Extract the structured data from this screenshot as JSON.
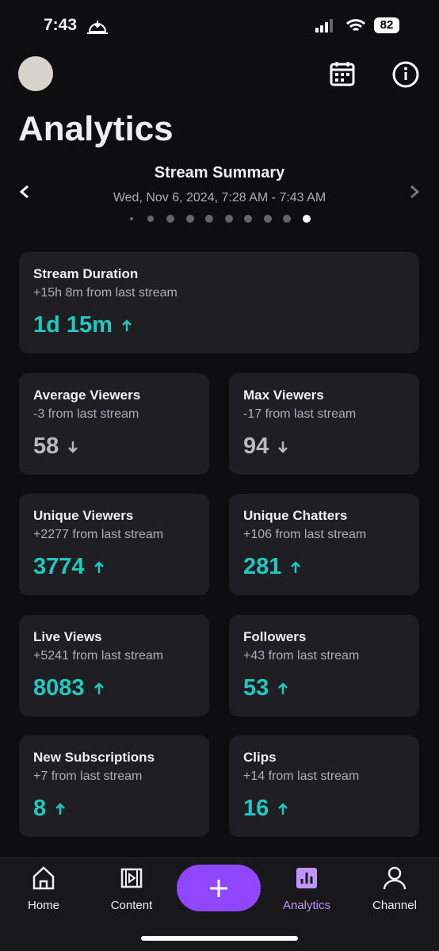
{
  "status_bar": {
    "time": "7:43",
    "battery": "82"
  },
  "header": {
    "title": "Analytics"
  },
  "summary": {
    "title": "Stream Summary",
    "date": "Wed, Nov 6, 2024, 7:28 AM - 7:43 AM"
  },
  "cards": [
    {
      "label": "Stream Duration",
      "change": "+15h 8m from last stream",
      "value": "1d 15m",
      "trend": "up"
    },
    {
      "label": "Average Viewers",
      "change": "-3 from last stream",
      "value": "58",
      "trend": "down"
    },
    {
      "label": "Max Viewers",
      "change": "-17 from last stream",
      "value": "94",
      "trend": "down"
    },
    {
      "label": "Unique Viewers",
      "change": "+2277 from last stream",
      "value": "3774",
      "trend": "up"
    },
    {
      "label": "Unique Chatters",
      "change": "+106 from last stream",
      "value": "281",
      "trend": "up"
    },
    {
      "label": "Live Views",
      "change": "+5241 from last stream",
      "value": "8083",
      "trend": "up"
    },
    {
      "label": "Followers",
      "change": "+43 from last stream",
      "value": "53",
      "trend": "up"
    },
    {
      "label": "New Subscriptions",
      "change": "+7 from last stream",
      "value": "8",
      "trend": "up"
    },
    {
      "label": "Clips",
      "change": "+14 from last stream",
      "value": "16",
      "trend": "up"
    }
  ],
  "nav": {
    "items": [
      "Home",
      "Content",
      "Analytics",
      "Channel"
    ],
    "active": 2
  }
}
